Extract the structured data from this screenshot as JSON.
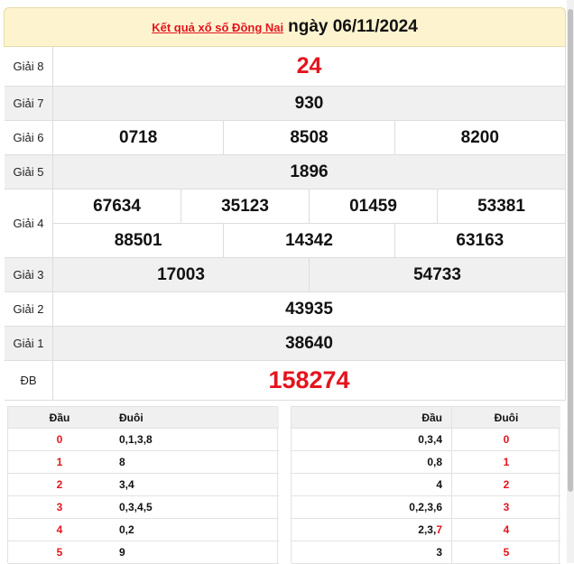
{
  "header": {
    "link": "Kết quả xổ số Đồng Nai",
    "date": "ngày 06/11/2024"
  },
  "prizes": [
    {
      "label": "Giải 8",
      "color": "#e4141e",
      "rows": [
        [
          "24"
        ]
      ]
    },
    {
      "label": "Giải 7",
      "rows": [
        [
          "930"
        ]
      ]
    },
    {
      "label": "Giải 6",
      "rows": [
        [
          "0718",
          "8508",
          "8200"
        ]
      ]
    },
    {
      "label": "Giải 5",
      "rows": [
        [
          "1896"
        ]
      ]
    },
    {
      "label": "Giải 4",
      "rows": [
        [
          "67634",
          "35123",
          "01459",
          "53381"
        ],
        [
          "88501",
          "14342",
          "63163"
        ]
      ]
    },
    {
      "label": "Giải 3",
      "rows": [
        [
          "17003",
          "54733"
        ]
      ]
    },
    {
      "label": "Giải 2",
      "rows": [
        [
          "43935"
        ]
      ]
    },
    {
      "label": "Giải 1",
      "rows": [
        [
          "38640"
        ]
      ]
    },
    {
      "label": "ĐB",
      "color": "#e4141e",
      "rows": [
        [
          "158274"
        ]
      ]
    }
  ],
  "head_table": {
    "columns": [
      "Đầu",
      "Đuôi"
    ],
    "rows": [
      [
        "0",
        "0,1,3,8"
      ],
      [
        "1",
        "8"
      ],
      [
        "2",
        "3,4"
      ],
      [
        "3",
        "0,3,4,5"
      ],
      [
        "4",
        "0,2"
      ],
      [
        "5",
        "9"
      ]
    ]
  },
  "tail_table": {
    "columns": [
      "Đầu",
      "Đuôi"
    ],
    "rows": [
      [
        [
          "0,3,4"
        ],
        "0"
      ],
      [
        [
          "0,8"
        ],
        "1"
      ],
      [
        [
          "4"
        ],
        "2"
      ],
      [
        [
          "0,2,3,6"
        ],
        "3"
      ],
      [
        [
          "2,3,",
          {
            "text": "7",
            "color": "#e4141e"
          }
        ],
        "4"
      ],
      [
        [
          "3"
        ],
        "5"
      ]
    ]
  }
}
